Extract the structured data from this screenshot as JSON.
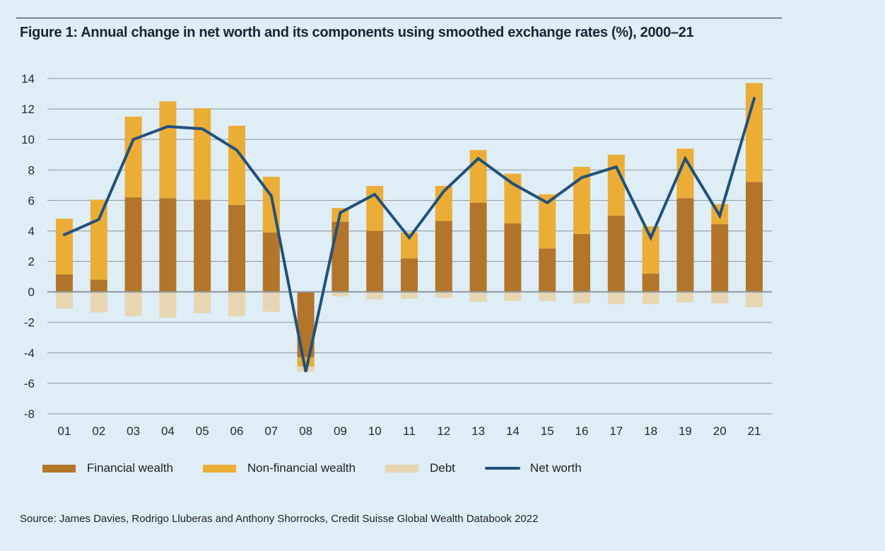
{
  "title": "Figure 1: Annual change in net worth and its components using smoothed exchange rates (%), 2000–21",
  "source": "Source: James Davies, Rodrigo Lluberas and Anthony Shorrocks, Credit Suisse Global Wealth Databook 2022",
  "colors": {
    "background": "#deedf6",
    "financial": "#b27529",
    "nonfinancial": "#ebad35",
    "debt": "#e8d5b2",
    "net": "#22507b",
    "grid": "#8c96a0"
  },
  "legend": [
    {
      "key": "financial",
      "label": "Financial wealth",
      "kind": "bar"
    },
    {
      "key": "nonfinancial",
      "label": "Non-financial wealth",
      "kind": "bar"
    },
    {
      "key": "debt",
      "label": "Debt",
      "kind": "bar"
    },
    {
      "key": "net",
      "label": "Net worth",
      "kind": "line"
    }
  ],
  "chart_data": {
    "type": "bar",
    "stacked": true,
    "title": "Figure 1: Annual change in net worth and its components using smoothed exchange rates (%), 2000–21",
    "xlabel": "",
    "ylabel": "",
    "ylim": [
      -8,
      14
    ],
    "yticks": [
      14,
      12,
      10,
      8,
      6,
      4,
      2,
      0,
      -2,
      -4,
      -6,
      -8
    ],
    "grid": true,
    "legend_position": "bottom",
    "categories": [
      "01",
      "02",
      "03",
      "04",
      "05",
      "06",
      "07",
      "08",
      "09",
      "10",
      "11",
      "12",
      "13",
      "14",
      "15",
      "16",
      "17",
      "18",
      "19",
      "20",
      "21"
    ],
    "series": [
      {
        "name": "Financial wealth",
        "key": "financial",
        "kind": "bar",
        "values": [
          1.15,
          0.8,
          6.2,
          6.15,
          6.05,
          5.7,
          3.9,
          -4.3,
          4.6,
          4.0,
          2.2,
          4.65,
          5.85,
          4.5,
          2.85,
          3.8,
          5.0,
          1.2,
          6.15,
          4.45,
          7.2
        ]
      },
      {
        "name": "Non-financial wealth",
        "key": "nonfinancial",
        "kind": "bar",
        "values": [
          3.65,
          5.25,
          5.3,
          6.35,
          6.0,
          5.2,
          3.65,
          -0.6,
          0.9,
          2.95,
          1.7,
          2.3,
          3.45,
          3.25,
          3.55,
          4.4,
          4.0,
          3.1,
          3.25,
          1.3,
          6.5
        ]
      },
      {
        "name": "Debt",
        "key": "debt",
        "kind": "bar",
        "values": [
          -1.1,
          -1.35,
          -1.6,
          -1.7,
          -1.4,
          -1.6,
          -1.3,
          -0.35,
          -0.3,
          -0.5,
          -0.45,
          -0.4,
          -0.65,
          -0.6,
          -0.6,
          -0.75,
          -0.8,
          -0.8,
          -0.7,
          -0.75,
          -1.0
        ]
      },
      {
        "name": "Net worth",
        "key": "net",
        "kind": "line",
        "values": [
          3.75,
          4.75,
          10.0,
          10.85,
          10.7,
          9.3,
          6.3,
          -5.25,
          5.2,
          6.4,
          3.55,
          6.6,
          8.75,
          7.1,
          5.85,
          7.5,
          8.2,
          3.55,
          8.75,
          5.0,
          12.7
        ]
      }
    ]
  }
}
